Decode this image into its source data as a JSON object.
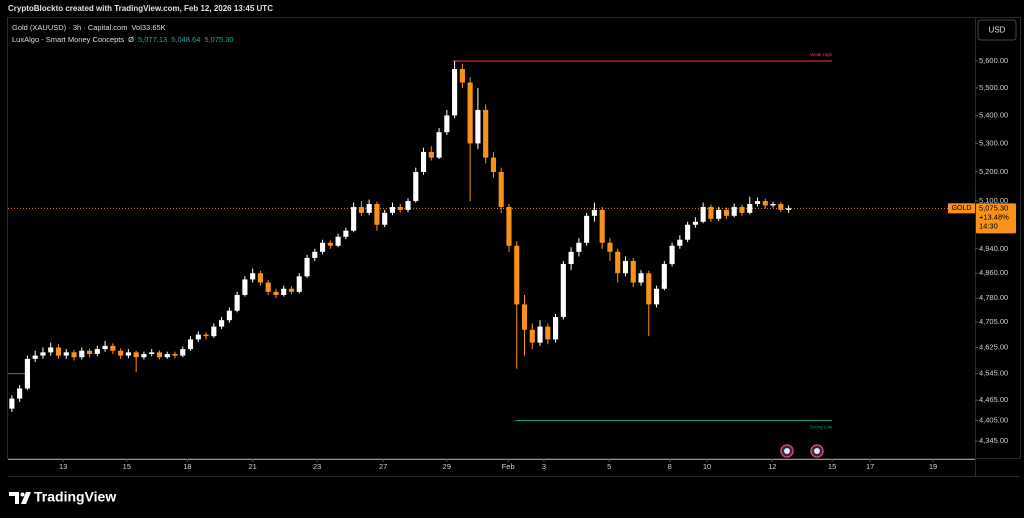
{
  "chart_data": {
    "type": "candlestick",
    "attribution": "CryptoBlockto created with TradingView.com, Feb 12, 2026 13:45 UTC",
    "symbol": "Gold (XAUUSD) · 3h · Capital.com",
    "volume_label": "Vol",
    "volume": "33.65K",
    "indicator": "LuxAlgo - Smart Money Concepts",
    "indicator_symbol": "Ø",
    "indicator_values": [
      "5,077.13",
      "5,048.64",
      "5,075.30"
    ],
    "currency": "USD",
    "brand": "TradingView",
    "up_color": "#ffffff",
    "down_color": "#f7931a",
    "log_scale": true,
    "ylim": [
      4296,
      5763
    ],
    "yticks": [
      {
        "value": 5600,
        "label": "5,600.00"
      },
      {
        "value": 5500,
        "label": "5,500.00"
      },
      {
        "value": 5400,
        "label": "5,400.00"
      },
      {
        "value": 5300,
        "label": "5,300.00"
      },
      {
        "value": 5200,
        "label": "5,200.00"
      },
      {
        "value": 5100,
        "label": "5,100.00"
      },
      {
        "value": 4940,
        "label": "4,940.00"
      },
      {
        "value": 4860,
        "label": "4,860.00"
      },
      {
        "value": 4780,
        "label": "4,780.00"
      },
      {
        "value": 4705,
        "label": "4,705.00"
      },
      {
        "value": 4625,
        "label": "4,625.00"
      },
      {
        "value": 4545,
        "label": "4,545.00"
      },
      {
        "value": 4465,
        "label": "4,465.00"
      },
      {
        "value": 4405,
        "label": "4,405.00"
      },
      {
        "value": 4345,
        "label": "4,345.00"
      }
    ],
    "xlim": [
      -0.5,
      124
    ],
    "xticks": [
      {
        "value": 6.6,
        "label": "13"
      },
      {
        "value": 14.8,
        "label": "15"
      },
      {
        "value": 22.6,
        "label": "18"
      },
      {
        "value": 31.0,
        "label": "21"
      },
      {
        "value": 39.3,
        "label": "23"
      },
      {
        "value": 47.8,
        "label": "27"
      },
      {
        "value": 56.0,
        "label": "29"
      },
      {
        "value": 63.9,
        "label": "Feb"
      },
      {
        "value": 68.5,
        "label": "3"
      },
      {
        "value": 76.9,
        "label": "5"
      },
      {
        "value": 84.7,
        "label": "8"
      },
      {
        "value": 89.5,
        "label": "10"
      },
      {
        "value": 97.9,
        "label": "12"
      },
      {
        "value": 105.6,
        "label": "15"
      },
      {
        "value": 110.5,
        "label": "17"
      },
      {
        "value": 118.6,
        "label": "19"
      }
    ],
    "last_price": {
      "ticker": "GOLD",
      "value": 5075.3,
      "label": "5,075.30",
      "change": "+13.48%",
      "countdown": "14:30",
      "color": "#f7931a"
    },
    "levels": [
      {
        "label": "Weak High",
        "value": 5600,
        "from": 56.8,
        "to": 105.6,
        "color": "#f23645"
      },
      {
        "label": "Strong Low",
        "value": 4405,
        "from": 64.8,
        "to": 105.6,
        "color": "#089981"
      },
      {
        "value": 4545,
        "from": -0.5,
        "to": 1.7,
        "color": "#089981"
      }
    ],
    "candles": [
      [
        4440,
        4480,
        4430,
        4470
      ],
      [
        4470,
        4510,
        4460,
        4500
      ],
      [
        4500,
        4600,
        4495,
        4590
      ],
      [
        4590,
        4615,
        4580,
        4600
      ],
      [
        4600,
        4625,
        4590,
        4610
      ],
      [
        4610,
        4640,
        4600,
        4625
      ],
      [
        4625,
        4635,
        4590,
        4600
      ],
      [
        4600,
        4620,
        4590,
        4610
      ],
      [
        4610,
        4618,
        4585,
        4595
      ],
      [
        4595,
        4625,
        4588,
        4615
      ],
      [
        4615,
        4622,
        4595,
        4605
      ],
      [
        4605,
        4630,
        4598,
        4620
      ],
      [
        4620,
        4645,
        4612,
        4630
      ],
      [
        4630,
        4638,
        4605,
        4615
      ],
      [
        4615,
        4622,
        4590,
        4600
      ],
      [
        4600,
        4620,
        4592,
        4610
      ],
      [
        4610,
        4615,
        4550,
        4595
      ],
      [
        4595,
        4612,
        4588,
        4605
      ],
      [
        4605,
        4620,
        4598,
        4610
      ],
      [
        4610,
        4616,
        4588,
        4595
      ],
      [
        4595,
        4612,
        4590,
        4605
      ],
      [
        4605,
        4612,
        4592,
        4600
      ],
      [
        4600,
        4628,
        4595,
        4620
      ],
      [
        4620,
        4660,
        4615,
        4650
      ],
      [
        4650,
        4675,
        4642,
        4665
      ],
      [
        4665,
        4672,
        4650,
        4660
      ],
      [
        4660,
        4700,
        4655,
        4690
      ],
      [
        4690,
        4720,
        4682,
        4710
      ],
      [
        4710,
        4750,
        4702,
        4740
      ],
      [
        4740,
        4800,
        4735,
        4790
      ],
      [
        4790,
        4850,
        4785,
        4840
      ],
      [
        4840,
        4875,
        4830,
        4860
      ],
      [
        4860,
        4868,
        4820,
        4830
      ],
      [
        4830,
        4838,
        4790,
        4800
      ],
      [
        4800,
        4810,
        4780,
        4790
      ],
      [
        4790,
        4820,
        4785,
        4810
      ],
      [
        4810,
        4818,
        4792,
        4800
      ],
      [
        4800,
        4860,
        4795,
        4850
      ],
      [
        4850,
        4920,
        4845,
        4910
      ],
      [
        4910,
        4940,
        4900,
        4930
      ],
      [
        4930,
        4970,
        4922,
        4960
      ],
      [
        4960,
        4968,
        4940,
        4950
      ],
      [
        4950,
        4990,
        4945,
        4980
      ],
      [
        4980,
        5010,
        4972,
        5000
      ],
      [
        5000,
        5095,
        4995,
        5080
      ],
      [
        5080,
        5100,
        5050,
        5060
      ],
      [
        5060,
        5105,
        5052,
        5090
      ],
      [
        5090,
        5098,
        5000,
        5020
      ],
      [
        5020,
        5070,
        5012,
        5060
      ],
      [
        5060,
        5095,
        5052,
        5080
      ],
      [
        5080,
        5090,
        5060,
        5070
      ],
      [
        5070,
        5110,
        5062,
        5100
      ],
      [
        5100,
        5215,
        5095,
        5200
      ],
      [
        5200,
        5285,
        5190,
        5270
      ],
      [
        5270,
        5290,
        5240,
        5250
      ],
      [
        5250,
        5355,
        5245,
        5340
      ],
      [
        5340,
        5420,
        5330,
        5400
      ],
      [
        5400,
        5600,
        5390,
        5570
      ],
      [
        5570,
        5590,
        5500,
        5520
      ],
      [
        5520,
        5540,
        5100,
        5300
      ],
      [
        5300,
        5500,
        5280,
        5420
      ],
      [
        5420,
        5440,
        5230,
        5250
      ],
      [
        5250,
        5270,
        5180,
        5200
      ],
      [
        5200,
        5215,
        5060,
        5080
      ],
      [
        5080,
        5090,
        4930,
        4950
      ],
      [
        4950,
        4965,
        4560,
        4760
      ],
      [
        4760,
        4790,
        4600,
        4680
      ],
      [
        4680,
        4700,
        4620,
        4640
      ],
      [
        4640,
        4710,
        4630,
        4690
      ],
      [
        4690,
        4700,
        4635,
        4650
      ],
      [
        4650,
        4730,
        4640,
        4720
      ],
      [
        4720,
        4900,
        4712,
        4890
      ],
      [
        4890,
        4945,
        4870,
        4930
      ],
      [
        4930,
        4975,
        4915,
        4960
      ],
      [
        4960,
        5060,
        4950,
        5050
      ],
      [
        5050,
        5095,
        5030,
        5070
      ],
      [
        5070,
        5080,
        4940,
        4960
      ],
      [
        4960,
        4975,
        4900,
        4930
      ],
      [
        4930,
        4940,
        4830,
        4860
      ],
      [
        4860,
        4915,
        4850,
        4900
      ],
      [
        4900,
        4910,
        4815,
        4830
      ],
      [
        4830,
        4870,
        4820,
        4860
      ],
      [
        4860,
        4868,
        4660,
        4760
      ],
      [
        4760,
        4820,
        4750,
        4810
      ],
      [
        4810,
        4900,
        4805,
        4890
      ],
      [
        4890,
        4960,
        4882,
        4950
      ],
      [
        4950,
        4985,
        4940,
        4970
      ],
      [
        4970,
        5030,
        4962,
        5020
      ],
      [
        5020,
        5045,
        5010,
        5030
      ],
      [
        5030,
        5095,
        5025,
        5080
      ],
      [
        5080,
        5088,
        5030,
        5040
      ],
      [
        5040,
        5080,
        5032,
        5070
      ],
      [
        5070,
        5078,
        5040,
        5050
      ],
      [
        5050,
        5092,
        5045,
        5080
      ],
      [
        5080,
        5088,
        5050,
        5060
      ],
      [
        5060,
        5115,
        5055,
        5090
      ],
      [
        5090,
        5112,
        5082,
        5100
      ],
      [
        5100,
        5108,
        5075,
        5085
      ],
      [
        5085,
        5098,
        5078,
        5090
      ],
      [
        5090,
        5096,
        5062,
        5070
      ],
      [
        5070,
        5085,
        5060,
        5075.3
      ]
    ]
  }
}
